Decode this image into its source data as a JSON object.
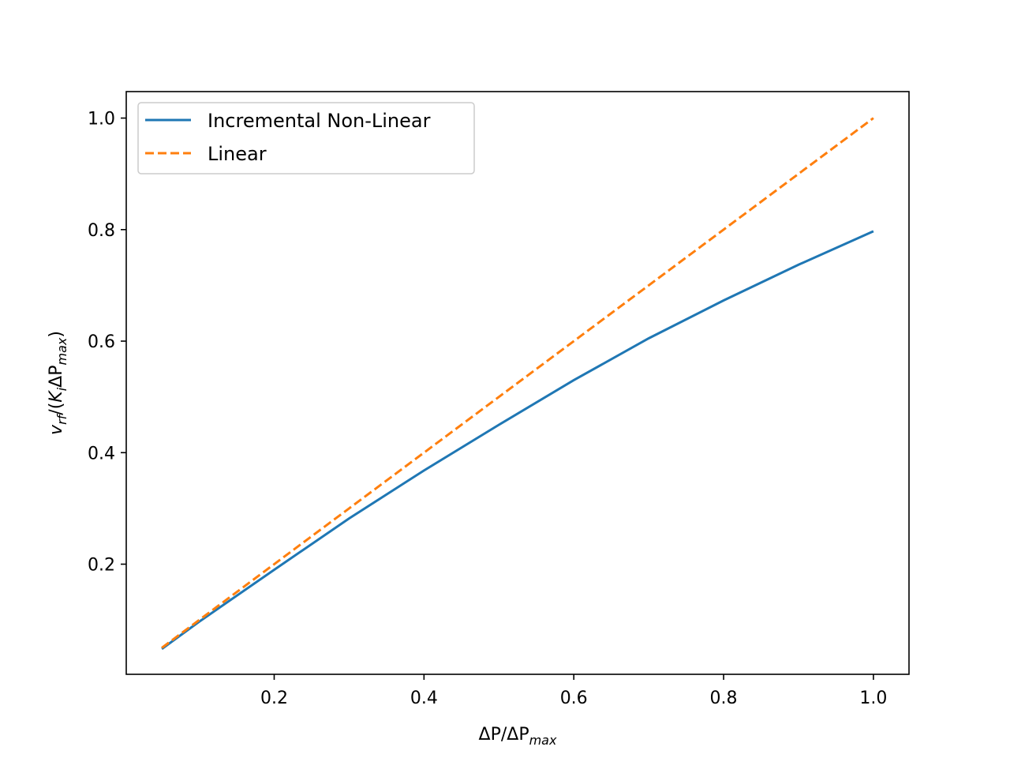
{
  "chart_data": {
    "type": "line",
    "xlabel": "ΔP/ΔPmax",
    "ylabel": "vrf/(KiΔPmax)",
    "xlim": [
      0.0025,
      1.0475
    ],
    "ylim": [
      0.0025,
      1.0475
    ],
    "xticks": [
      "0.2",
      "0.4",
      "0.6",
      "0.8",
      "1.0"
    ],
    "yticks": [
      "0.2",
      "0.4",
      "0.6",
      "0.8",
      "1.0"
    ],
    "grid": false,
    "legend_position": "upper-left",
    "series": [
      {
        "name": "Incremental Non-Linear",
        "color": "#1f77b4",
        "style": "solid",
        "x": [
          0.05,
          0.1,
          0.2,
          0.3,
          0.4,
          0.5,
          0.6,
          0.7,
          0.8,
          0.9,
          1.0
        ],
        "y": [
          0.048,
          0.097,
          0.19,
          0.282,
          0.368,
          0.45,
          0.53,
          0.605,
          0.673,
          0.737,
          0.797
        ]
      },
      {
        "name": "Linear",
        "color": "#ff7f0e",
        "style": "dashed",
        "x": [
          0.05,
          0.1,
          0.2,
          0.3,
          0.4,
          0.5,
          0.6,
          0.7,
          0.8,
          0.9,
          1.0
        ],
        "y": [
          0.05,
          0.1,
          0.2,
          0.3,
          0.4,
          0.5,
          0.6,
          0.7,
          0.8,
          0.9,
          1.0
        ]
      }
    ]
  }
}
